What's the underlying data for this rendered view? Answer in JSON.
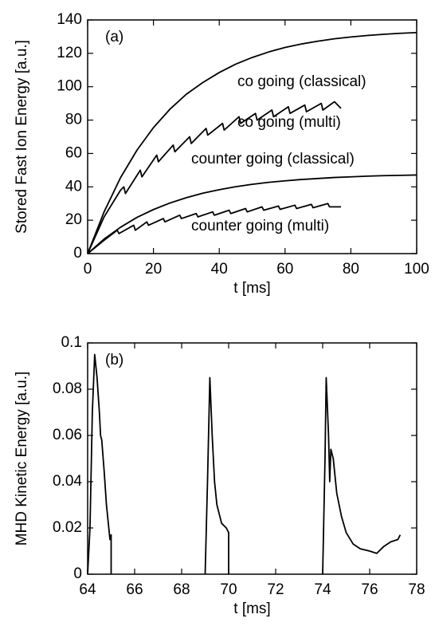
{
  "chart_data": [
    {
      "type": "line",
      "annotation": "(a)",
      "xlabel": "t [ms]",
      "ylabel": "Stored Fast Ion Energy [a.u.]",
      "xlim": [
        0,
        100
      ],
      "ylim": [
        0,
        140
      ],
      "xticks": [
        0,
        20,
        40,
        60,
        80,
        100
      ],
      "yticks": [
        0,
        20,
        40,
        60,
        80,
        100,
        120,
        140
      ],
      "series": [
        {
          "name": "co going (classical)",
          "color": "#000000",
          "x": [
            0,
            5,
            10,
            15,
            20,
            25,
            30,
            35,
            40,
            45,
            50,
            55,
            60,
            65,
            70,
            75,
            80,
            85,
            90,
            95,
            100
          ],
          "values": [
            0,
            25,
            45.5,
            62,
            75.5,
            86.5,
            95.5,
            102.5,
            108.5,
            113.5,
            117.5,
            120.8,
            123.5,
            125.6,
            127.3,
            128.7,
            129.8,
            130.7,
            131.4,
            132,
            132.4
          ]
        },
        {
          "name": "co going (multi)",
          "color": "#000000",
          "x": [
            0,
            5,
            10,
            11,
            11.5,
            16,
            16.5,
            21,
            21.5,
            26,
            26.5,
            31,
            31.5,
            36,
            36.5,
            41,
            41.5,
            46,
            46.5,
            51,
            51.5,
            56,
            56.5,
            61,
            61.5,
            66,
            66.5,
            71,
            71.5,
            75,
            77
          ],
          "values": [
            0,
            22,
            38,
            40,
            36,
            50,
            46,
            59,
            55,
            65,
            61,
            70,
            66,
            75,
            71,
            78,
            74,
            82,
            78,
            84,
            80,
            86,
            82,
            88,
            84,
            89,
            85,
            90,
            86,
            91,
            87
          ]
        },
        {
          "name": "counter going (classical)",
          "color": "#000000",
          "x": [
            0,
            5,
            10,
            15,
            20,
            25,
            30,
            35,
            40,
            45,
            50,
            55,
            60,
            65,
            70,
            75,
            80,
            85,
            90,
            95,
            100
          ],
          "values": [
            0,
            8.7,
            15.8,
            21.7,
            26.4,
            30.3,
            33.5,
            36.2,
            38.3,
            40.1,
            41.5,
            42.7,
            43.6,
            44.4,
            45,
            45.6,
            46,
            46.4,
            46.7,
            46.9,
            47.1
          ]
        },
        {
          "name": "counter going (multi)",
          "color": "#000000",
          "x": [
            0,
            5,
            9,
            9.5,
            14,
            14.5,
            18,
            18.5,
            23,
            23.5,
            28,
            28.5,
            33,
            33.5,
            38,
            38.5,
            43,
            43.5,
            48,
            48.5,
            53,
            53.5,
            58,
            58.5,
            63,
            63.5,
            68,
            68.5,
            73,
            73.5,
            77
          ],
          "values": [
            0,
            8,
            14,
            12,
            17,
            14,
            19,
            17,
            21,
            19,
            23,
            21,
            24,
            22,
            25,
            23,
            26,
            24,
            27,
            25,
            28,
            26,
            28.5,
            26.5,
            29,
            27,
            29.5,
            27.5,
            30,
            28,
            28
          ]
        }
      ]
    },
    {
      "type": "line",
      "annotation": "(b)",
      "xlabel": "t [ms]",
      "ylabel": "MHD Kinetic Energy [a.u.]",
      "xlim": [
        64,
        78
      ],
      "ylim": [
        0,
        0.1
      ],
      "xticks": [
        64,
        66,
        68,
        70,
        72,
        74,
        76,
        78
      ],
      "yticks": [
        0,
        0.02,
        0.04,
        0.06,
        0.08,
        0.1
      ],
      "series": [
        {
          "color": "#000000",
          "x": [
            64,
            64.1,
            64.2,
            64.3,
            64.4,
            64.5,
            64.55,
            64.6,
            64.7,
            64.8,
            64.9,
            64.95,
            65,
            65,
            null,
            69,
            69.1,
            69.2,
            69.3,
            69.4,
            69.5,
            69.7,
            69.9,
            70,
            70,
            null,
            74,
            74.1,
            74.15,
            74.25,
            74.3,
            74.35,
            74.45,
            74.6,
            74.8,
            75,
            75.3,
            75.6,
            76,
            76.3,
            76.6,
            76.9,
            77.2,
            77.3
          ],
          "values": [
            0,
            0.02,
            0.07,
            0.095,
            0.085,
            0.07,
            0.06,
            0.058,
            0.045,
            0.03,
            0.02,
            0.015,
            0.017,
            0,
            null,
            0,
            0.04,
            0.085,
            0.06,
            0.04,
            0.03,
            0.022,
            0.02,
            0.018,
            0,
            null,
            0,
            0.05,
            0.085,
            0.06,
            0.04,
            0.054,
            0.05,
            0.035,
            0.025,
            0.018,
            0.013,
            0.011,
            0.01,
            0.009,
            0.012,
            0.014,
            0.015,
            0.017
          ]
        }
      ]
    }
  ]
}
